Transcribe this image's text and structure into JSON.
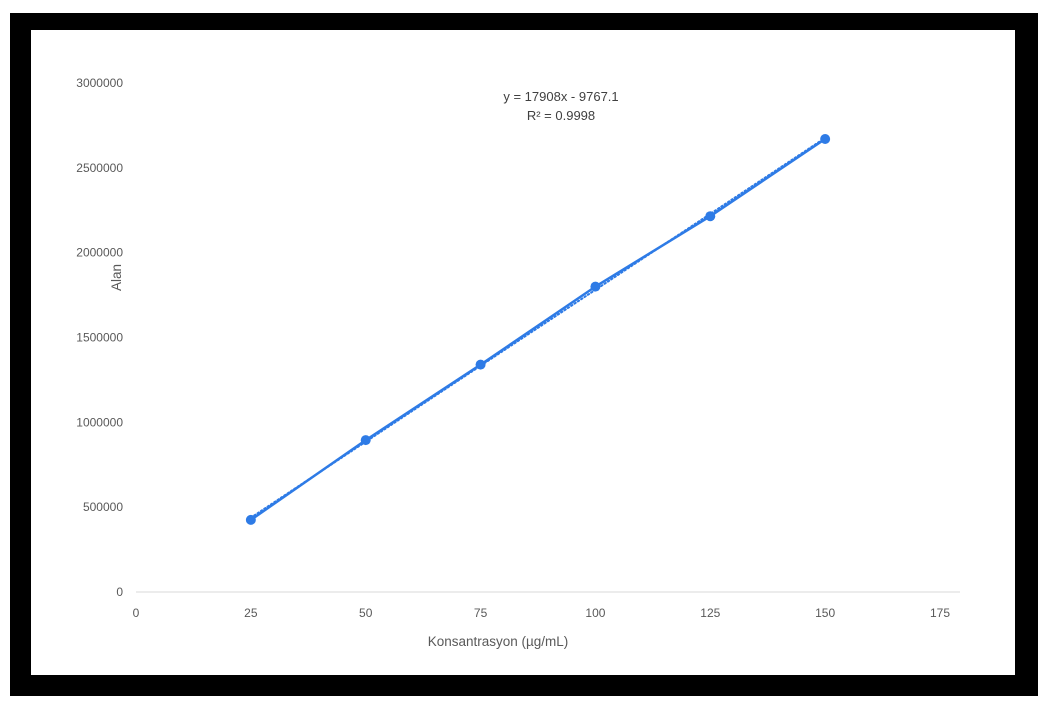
{
  "chart_data": {
    "type": "scatter",
    "title": "",
    "xlabel": "Konsantrasyon (µg/mL)",
    "ylabel": "Alan",
    "xlim": [
      0,
      175
    ],
    "ylim": [
      0,
      3000000
    ],
    "x_ticks": [
      "0",
      "25",
      "50",
      "75",
      "100",
      "125",
      "150",
      "175"
    ],
    "y_ticks": [
      "0",
      "500000",
      "1000000",
      "1500000",
      "2000000",
      "2500000",
      "3000000"
    ],
    "grid": false,
    "legend": "none",
    "series": [
      {
        "x": [
          25,
          50,
          75,
          100,
          125,
          150
        ],
        "y": [
          425000,
          895000,
          1340000,
          1800000,
          2215000,
          2670000
        ],
        "color": "#2e7be6",
        "connected": true
      }
    ],
    "trendline": {
      "type": "linear",
      "slope": 17908,
      "intercept": -9767.1,
      "style": "dotted",
      "color": "#2e7be6",
      "x_range": [
        25,
        150
      ]
    },
    "annotations": [
      "y = 17908x - 9767.1",
      "R² = 0.9998"
    ]
  },
  "frame": {
    "outer_color": "#000000",
    "inner_color": "#ffffff"
  }
}
